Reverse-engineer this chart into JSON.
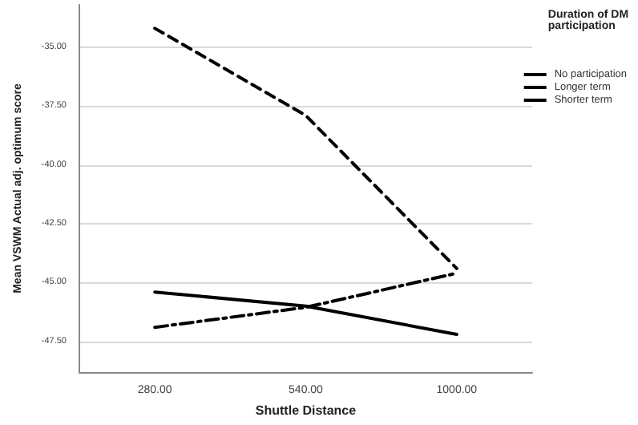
{
  "chart_data": {
    "type": "line",
    "xlabel": "Shuttle Distance",
    "ylabel": "Mean VSWM Actual adj. optimum score",
    "legend_title": "Duration of DM participation",
    "categories": [
      "280.00",
      "540.00",
      "1000.00"
    ],
    "series": [
      {
        "name": "No participation",
        "color": "#000000",
        "line_style": "solid",
        "values": [
          -45.4,
          -46.0,
          -47.2
        ]
      },
      {
        "name": "Longer term",
        "color": "#000000",
        "line_style": "dashdot",
        "values": [
          -46.9,
          -46.05,
          -44.6
        ]
      },
      {
        "name": "Shorter term",
        "color": "#000000",
        "line_style": "dashed",
        "values": [
          -34.2,
          -37.9,
          -44.4
        ]
      }
    ],
    "ylim": [
      -48.8,
      -33.2
    ],
    "yticks": [
      {
        "value": -47.5,
        "label": "-47.50"
      },
      {
        "value": -45,
        "label": "-45.00"
      },
      {
        "value": -42.5,
        "label": "-42.50"
      },
      {
        "value": -40,
        "label": "-40.00"
      },
      {
        "value": -37.5,
        "label": "-37.50"
      },
      {
        "value": -35,
        "label": "-35.00"
      }
    ],
    "grid": "y",
    "legend": "right",
    "marker": "none"
  }
}
